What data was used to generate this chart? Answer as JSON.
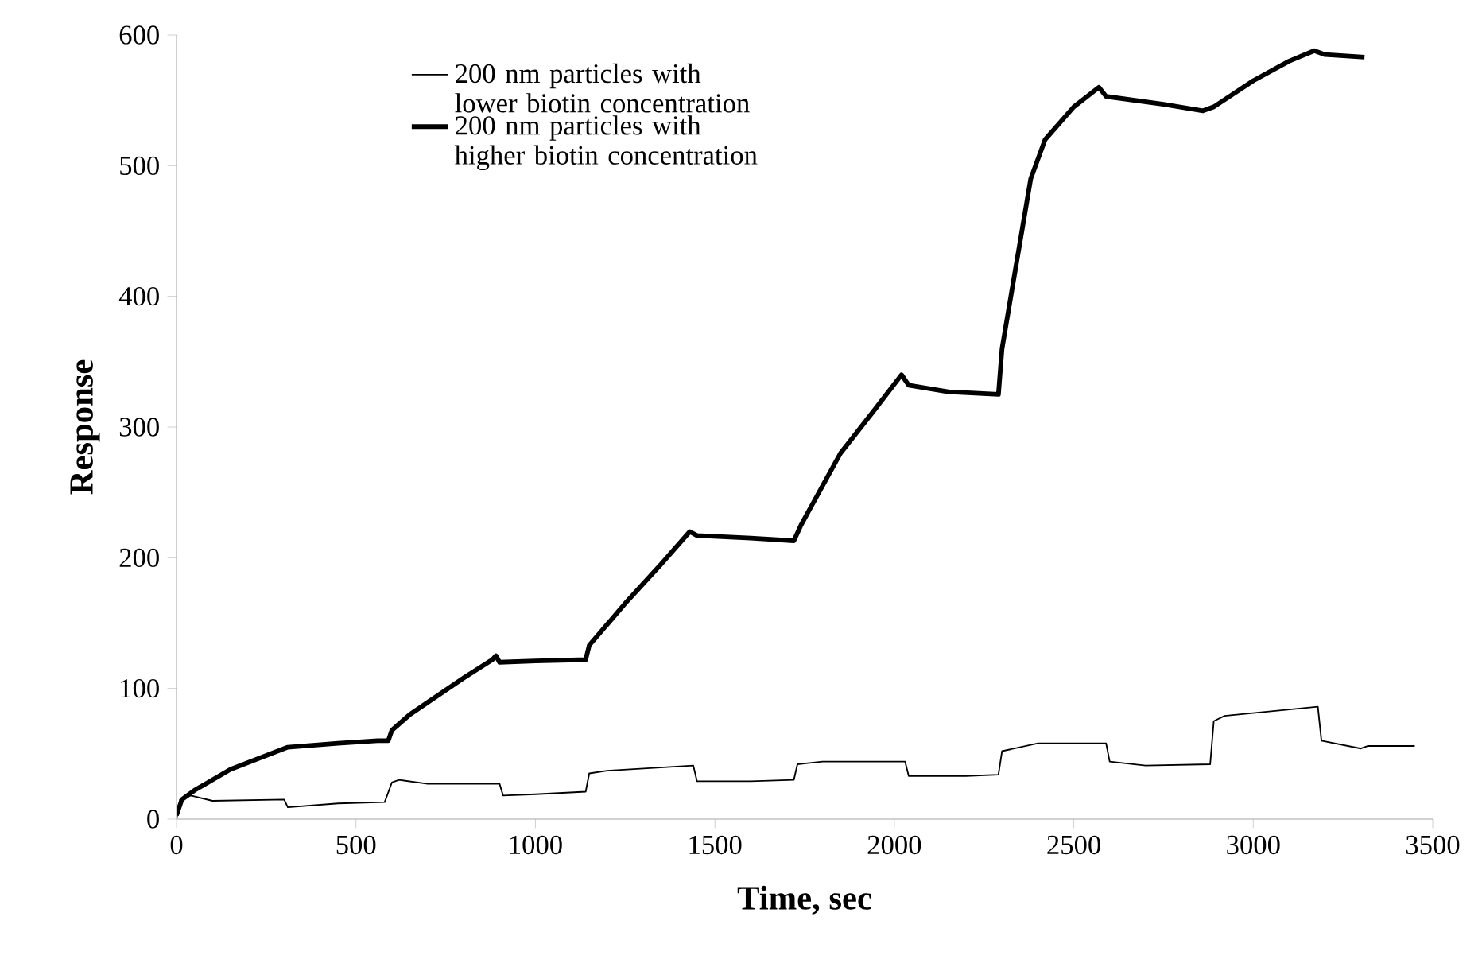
{
  "chart_data": {
    "type": "line",
    "xlabel": "Time, sec",
    "ylabel": "Response",
    "xlim": [
      0,
      3500
    ],
    "ylim": [
      0,
      600
    ],
    "xticks": [
      0,
      500,
      1000,
      1500,
      2000,
      2500,
      3000,
      3500
    ],
    "yticks": [
      0,
      100,
      200,
      300,
      400,
      500,
      600
    ],
    "grid": false,
    "legend": "top left",
    "marker": "none",
    "line_style": "solid",
    "series": [
      {
        "name": "200 nm particles with lower biotin concentration",
        "color": "#000000",
        "x": [
          0,
          10,
          40,
          100,
          300,
          310,
          450,
          580,
          600,
          620,
          700,
          900,
          910,
          1000,
          1140,
          1150,
          1200,
          1440,
          1450,
          1600,
          1720,
          1730,
          1800,
          2030,
          2040,
          2200,
          2290,
          2300,
          2400,
          2590,
          2600,
          2700,
          2880,
          2890,
          2920,
          3180,
          3190,
          3300,
          3320,
          3450
        ],
        "values": [
          0,
          15,
          18,
          14,
          15,
          9,
          12,
          13,
          28,
          30,
          27,
          27,
          18,
          19,
          21,
          35,
          37,
          41,
          29,
          29,
          30,
          42,
          44,
          44,
          33,
          33,
          34,
          52,
          58,
          58,
          44,
          41,
          42,
          75,
          79,
          86,
          60,
          54,
          56,
          56
        ]
      },
      {
        "name": "200 nm particles with higher biotin concentration",
        "color": "#000000",
        "x": [
          0,
          15,
          50,
          150,
          300,
          310,
          450,
          560,
          590,
          600,
          650,
          800,
          880,
          890,
          900,
          1000,
          1140,
          1150,
          1250,
          1350,
          1430,
          1450,
          1600,
          1720,
          1740,
          1850,
          1950,
          2020,
          2040,
          2150,
          2290,
          2300,
          2380,
          2420,
          2500,
          2570,
          2590,
          2750,
          2860,
          2890,
          3000,
          3100,
          3170,
          3200,
          3310
        ],
        "values": [
          3,
          15,
          22,
          38,
          54,
          55,
          58,
          60,
          60,
          68,
          80,
          108,
          122,
          125,
          120,
          121,
          122,
          133,
          165,
          195,
          220,
          217,
          215,
          213,
          225,
          280,
          315,
          340,
          332,
          327,
          325,
          360,
          490,
          520,
          545,
          560,
          553,
          547,
          542,
          545,
          565,
          580,
          588,
          585,
          583
        ]
      }
    ]
  }
}
